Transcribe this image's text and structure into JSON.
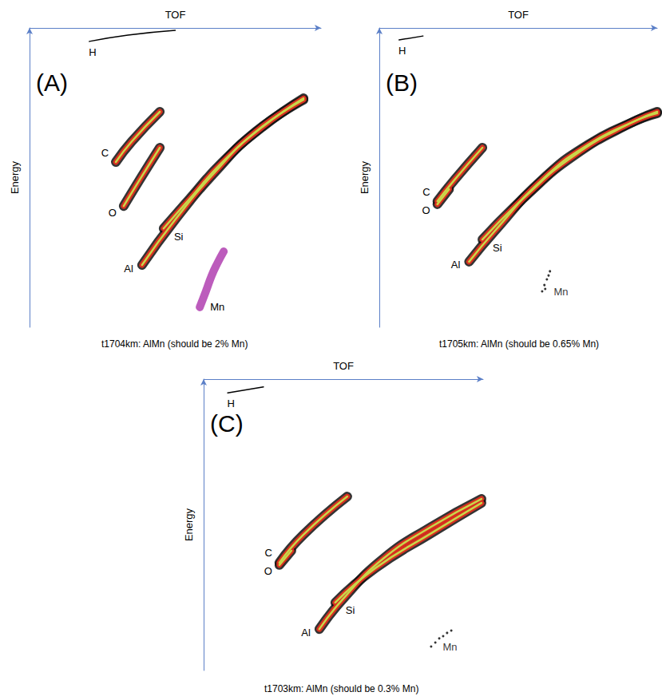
{
  "chart_data": [
    {
      "type": "line",
      "panel_label": "(A)",
      "title": "t1704km: AlMn (should be 2% Mn)",
      "x_label": "TOF",
      "y_label": "Energy",
      "xlim": [
        0,
        100
      ],
      "ylim": [
        0,
        100
      ],
      "tick_labels": false,
      "grid": false,
      "series": [
        {
          "name": "H",
          "color": "#000000",
          "line_style": "thin",
          "x": [
            20.5,
            33.7,
            50
          ],
          "values": [
            4.5,
            2.4,
            0.8
          ]
        },
        {
          "name": "C",
          "color": "#d7301f",
          "line_style": "band",
          "x": [
            29.6,
            35,
            44.7
          ],
          "values": [
            44.8,
            38,
            28
          ]
        },
        {
          "name": "O",
          "color": "#d7301f",
          "line_style": "band",
          "x": [
            32.3,
            37.8,
            44.7
          ],
          "values": [
            59.5,
            50.7,
            40
          ]
        },
        {
          "name": "Al",
          "color": "#d7301f",
          "line_style": "band",
          "x": [
            38.6,
            50,
            63.8,
            77.5,
            94
          ],
          "values": [
            79.2,
            64,
            48,
            34.7,
            24
          ]
        },
        {
          "name": "Si",
          "color": "#d7301f",
          "line_style": "band",
          "x": [
            46,
            55,
            66,
            80,
            94
          ],
          "values": [
            67,
            57,
            45,
            33,
            23.5
          ]
        },
        {
          "name": "Mn",
          "color": "#b040b0",
          "line_style": "blob",
          "x": [
            58.4,
            60.5,
            62.5,
            64.4,
            66.6
          ],
          "values": [
            93.3,
            88,
            82.7,
            78.7,
            74.7
          ]
        }
      ]
    },
    {
      "type": "line",
      "panel_label": "(B)",
      "title": "t1705km: AlMn (should be 0.65% Mn)",
      "x_label": "TOF",
      "y_label": "Energy",
      "xlim": [
        0,
        100
      ],
      "ylim": [
        0,
        100
      ],
      "tick_labels": false,
      "grid": false,
      "series": [
        {
          "name": "H",
          "color": "#000000",
          "line_style": "thin",
          "x": [
            7.1,
            15.7
          ],
          "values": [
            4,
            2.7
          ]
        },
        {
          "name": "C",
          "color": "#d7301f",
          "line_style": "band",
          "x": [
            20.9,
            27.1,
            37.1
          ],
          "values": [
            57.9,
            50.7,
            40
          ]
        },
        {
          "name": "O",
          "color": "#d7301f",
          "line_style": "band",
          "x": [
            20.9,
            25.1
          ],
          "values": [
            58.9,
            53.9
          ]
        },
        {
          "name": "Al",
          "color": "#d7301f",
          "line_style": "band",
          "x": [
            32.3,
            41.4,
            58.6,
            75.7,
            92.9,
            100
          ],
          "values": [
            78.1,
            68,
            50.7,
            38.7,
            30.7,
            28
          ]
        },
        {
          "name": "Si",
          "color": "#d7301f",
          "line_style": "band",
          "x": [
            37.1,
            52.9,
            70,
            90,
            100
          ],
          "values": [
            70.7,
            56,
            42.7,
            32,
            28.5
          ]
        },
        {
          "name": "Mn",
          "color": "#000000",
          "type": "scatter",
          "marker": "dot",
          "x": [
            58.6,
            59.7,
            59.4,
            60.3,
            60.9,
            61.4
          ],
          "values": [
            88,
            87.2,
            85.9,
            84,
            82.7,
            81.3
          ]
        }
      ]
    },
    {
      "type": "line",
      "panel_label": "(C)",
      "title": "t1703km: AlMn (should be 0.3% Mn)",
      "x_label": "TOF",
      "y_label": "Energy",
      "xlim": [
        0,
        100
      ],
      "ylim": [
        0,
        100
      ],
      "tick_labels": false,
      "grid": false,
      "series": [
        {
          "name": "H",
          "color": "#000000",
          "line_style": "thin",
          "x": [
            8.6,
            21.4
          ],
          "values": [
            4.7,
            2.7
          ]
        },
        {
          "name": "C",
          "color": "#d7301f",
          "line_style": "band",
          "x": [
            27.1,
            35.7,
            51.4
          ],
          "values": [
            63,
            53.4,
            40.3
          ]
        },
        {
          "name": "O",
          "color": "#d7301f",
          "line_style": "band",
          "x": [
            27.1,
            31.4
          ],
          "values": [
            63.8,
            58.9
          ]
        },
        {
          "name": "Al",
          "color": "#d7301f",
          "line_style": "band",
          "x": [
            41.4,
            50,
            64.3,
            81.4,
            99.4
          ],
          "values": [
            85.8,
            75.3,
            61.6,
            50.7,
            41.1
          ]
        },
        {
          "name": "Si",
          "color": "#d7301f",
          "line_style": "band",
          "x": [
            47.1,
            61.4,
            81.4,
            99.4
          ],
          "values": [
            76.7,
            64.9,
            52.9,
            42.5
          ]
        },
        {
          "name": "Mn",
          "color": "#000000",
          "type": "scatter",
          "marker": "dot",
          "x": [
            81.4,
            82.9,
            84.3,
            85.7,
            87.1,
            88.6
          ],
          "values": [
            91.8,
            90.4,
            89,
            88.2,
            87.1,
            86.3
          ]
        }
      ]
    }
  ]
}
